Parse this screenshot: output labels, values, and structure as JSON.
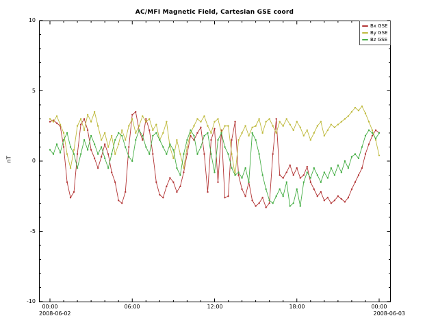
{
  "chart_data": {
    "type": "line",
    "title": "AC/MFI  Magnetic Field, Cartesian GSE coord",
    "ylabel": "nT",
    "ylim": [
      -10,
      10
    ],
    "grid": false,
    "legend_position": "top-right",
    "x_step_minutes": 15,
    "x_total_minutes": 1440,
    "x_tick_minutes": [
      0,
      360,
      720,
      1080,
      1440
    ],
    "x_tick_labels": [
      "00:00",
      "06:00",
      "12:00",
      "18:00",
      "00:00"
    ],
    "y_tick_values": [
      10,
      5,
      0,
      -5,
      -10
    ],
    "y_tick_labels": [
      "10",
      "5",
      "0",
      "-5",
      "-10"
    ],
    "date_left": "2008-06-02",
    "date_right": "2008-06-03",
    "frame_color": "#000000",
    "series": [
      {
        "name": "Bx GSE",
        "color": "#b23434",
        "values": [
          2.8,
          2.9,
          2.7,
          2.5,
          1.0,
          -1.5,
          -2.6,
          -2.2,
          0.5,
          2.6,
          3.0,
          2.2,
          0.8,
          0.2,
          -0.5,
          0.3,
          1.2,
          0.5,
          -0.8,
          -1.5,
          -2.8,
          -3.0,
          -2.2,
          1.0,
          3.3,
          3.5,
          2.2,
          1.5,
          3.0,
          2.2,
          0.5,
          -1.5,
          -2.4,
          -2.6,
          -1.8,
          -1.2,
          -1.5,
          -2.2,
          -1.8,
          -0.8,
          0.5,
          1.8,
          1.5,
          2.0,
          2.4,
          0.5,
          -2.2,
          1.5,
          2.3,
          -1.5,
          2.2,
          -2.6,
          -2.5,
          1.5,
          2.8,
          -1.0,
          -2.0,
          -2.5,
          -1.5,
          -2.8,
          -3.2,
          -3.0,
          -2.6,
          -3.3,
          -3.0,
          0.5,
          3.0,
          -1.0,
          -1.2,
          -0.8,
          -0.3,
          -1.0,
          -0.5,
          -1.2,
          -1.0,
          -0.4,
          -1.5,
          -2.0,
          -2.5,
          -2.2,
          -2.8,
          -2.6,
          -3.0,
          -2.8,
          -2.5,
          -2.7,
          -2.9,
          -2.6,
          -2.0,
          -1.5,
          -1.0,
          -0.5,
          0.5,
          1.2,
          1.8,
          2.2,
          2.0
        ]
      },
      {
        "name": "By GSE",
        "color": "#bfba3e",
        "values": [
          3.0,
          2.8,
          3.2,
          2.6,
          2.0,
          0.5,
          -0.5,
          0.8,
          2.5,
          3.0,
          2.2,
          3.3,
          2.8,
          3.5,
          2.5,
          1.5,
          2.0,
          1.0,
          1.8,
          0.5,
          1.2,
          2.2,
          1.5,
          2.5,
          3.0,
          2.0,
          2.5,
          3.2,
          2.8,
          3.0,
          2.2,
          2.6,
          1.5,
          2.0,
          2.8,
          1.0,
          0.2,
          1.5,
          0.5,
          -0.5,
          1.0,
          2.0,
          2.5,
          3.0,
          2.8,
          3.2,
          2.5,
          2.0,
          2.8,
          3.0,
          2.0,
          2.5,
          2.5,
          0.5,
          -1.0,
          1.5,
          2.0,
          2.5,
          1.8,
          2.4,
          2.5,
          3.0,
          2.0,
          2.8,
          3.0,
          2.5,
          2.0,
          2.8,
          2.5,
          3.0,
          2.6,
          2.2,
          2.8,
          2.4,
          1.8,
          2.2,
          1.5,
          2.0,
          2.5,
          2.8,
          1.8,
          2.2,
          2.6,
          2.4,
          2.6,
          2.8,
          3.0,
          3.2,
          3.5,
          3.8,
          3.6,
          3.9,
          3.4,
          2.8,
          2.2,
          1.5,
          0.4
        ]
      },
      {
        "name": "Bz GSE",
        "color": "#46ae46",
        "values": [
          0.8,
          0.5,
          1.2,
          0.6,
          1.5,
          2.0,
          1.0,
          0.5,
          -0.5,
          0.5,
          1.5,
          0.8,
          1.8,
          1.2,
          0.5,
          1.0,
          0.2,
          -0.5,
          0.5,
          1.5,
          2.0,
          1.8,
          1.0,
          0.3,
          0.0,
          1.5,
          2.2,
          1.8,
          1.0,
          0.5,
          1.8,
          2.0,
          1.5,
          1.0,
          0.5,
          1.2,
          0.8,
          -0.5,
          -1.0,
          0.5,
          1.5,
          2.2,
          1.8,
          0.5,
          1.0,
          1.8,
          2.0,
          0.5,
          -0.8,
          1.5,
          2.0,
          1.0,
          0.5,
          -0.5,
          -1.0,
          -0.8,
          -1.2,
          -0.5,
          -1.5,
          2.0,
          1.5,
          0.5,
          -1.0,
          -2.0,
          -2.8,
          -3.0,
          -2.5,
          -2.0,
          -2.5,
          -1.5,
          -3.2,
          -3.0,
          -2.0,
          -3.2,
          -1.5,
          -0.8,
          -1.2,
          -0.5,
          -1.0,
          -1.5,
          -0.8,
          -1.2,
          -0.5,
          -1.0,
          -0.3,
          -0.8,
          0.0,
          -0.5,
          0.3,
          0.5,
          0.2,
          1.0,
          1.8,
          2.2,
          2.0,
          1.6,
          2.0
        ]
      }
    ]
  }
}
